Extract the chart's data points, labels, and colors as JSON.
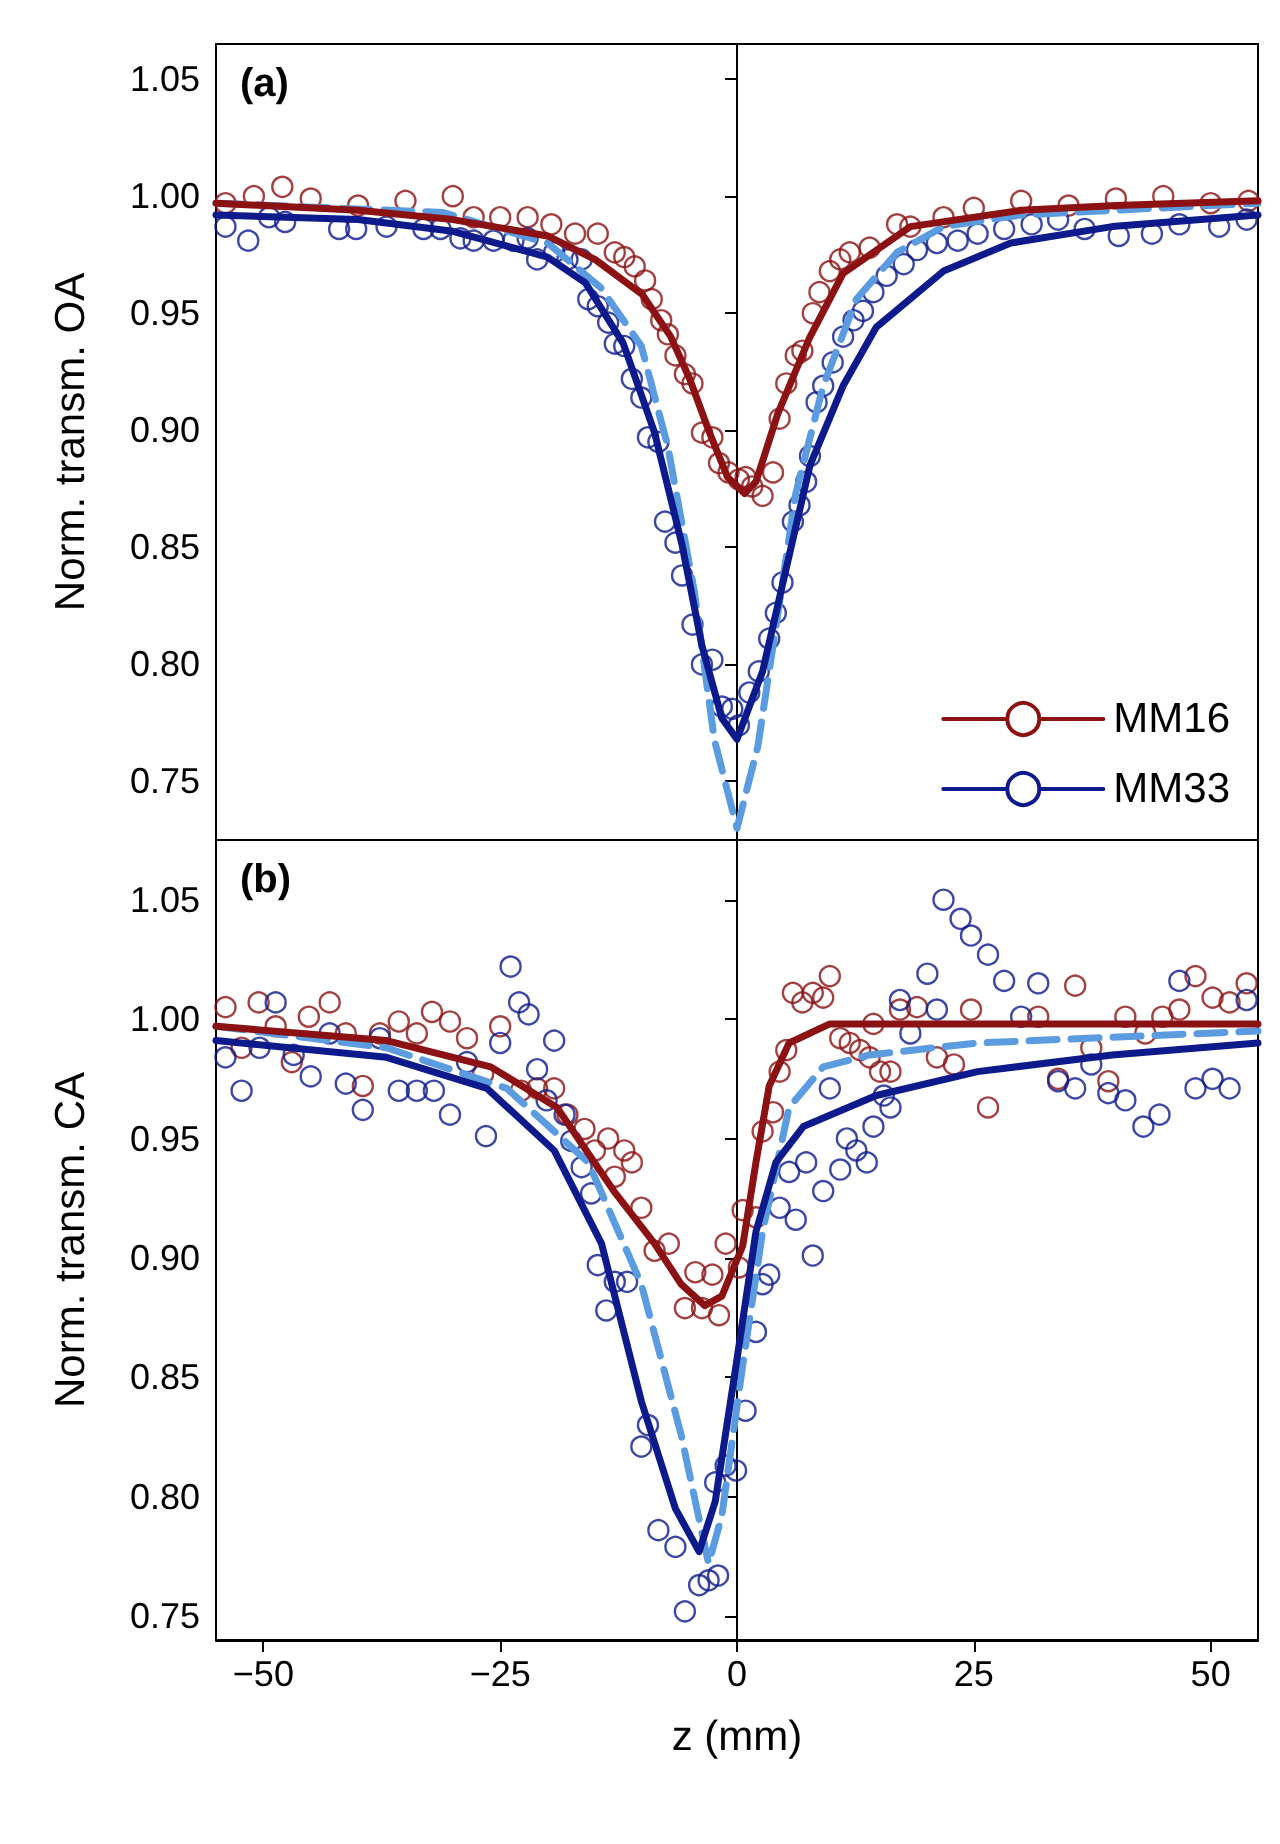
{
  "chart_data": [
    {
      "type": "scatter",
      "ylabel": "Norm. transm. OA",
      "annotations": [
        "(a)"
      ],
      "legend": "bottom right",
      "tick_labels": "y",
      "xlim": [
        -55,
        55
      ],
      "xticks": [
        -50,
        -25,
        0,
        25,
        50
      ],
      "ylim": [
        0.725,
        1.065
      ],
      "yticks": [
        {
          "value": 0.75,
          "label": "0.75"
        },
        {
          "value": 0.8,
          "label": "0.80"
        },
        {
          "value": 0.85,
          "label": "0.85"
        },
        {
          "value": 0.9,
          "label": "0.90"
        },
        {
          "value": 0.95,
          "label": "0.95"
        },
        {
          "value": 1.0,
          "label": "1.00"
        },
        {
          "value": 1.05,
          "label": "1.05"
        }
      ],
      "series": [
        {
          "marker": "circle",
          "color": "#8b1113",
          "x": [
            -54,
            -51,
            -48,
            -45,
            -40,
            -35,
            -30,
            -27.8,
            -25,
            -22.1,
            -19.6,
            -17.1,
            -14.7,
            -12.9,
            -11.9,
            -10.8,
            -9.7,
            -9,
            -8,
            -7.3,
            -6.5,
            -5.5,
            -4.7,
            -3.7,
            -2.6,
            -1.9,
            -0.9,
            0.2,
            0.9,
            1.6,
            2.7,
            3.8,
            4.5,
            5.2,
            6.2,
            6.9,
            8,
            8.7,
            9.8,
            10.9,
            11.9,
            14,
            16.9,
            18.3,
            21.8,
            25,
            30,
            35,
            40,
            45,
            50,
            54
          ],
          "values": [
            0.997,
            1.0,
            1.004,
            0.999,
            0.996,
            0.998,
            1.0,
            0.991,
            0.991,
            0.991,
            0.988,
            0.984,
            0.984,
            0.976,
            0.974,
            0.97,
            0.964,
            0.956,
            0.947,
            0.941,
            0.932,
            0.924,
            0.92,
            0.899,
            0.897,
            0.886,
            0.882,
            0.879,
            0.88,
            0.876,
            0.872,
            0.882,
            0.905,
            0.92,
            0.932,
            0.934,
            0.95,
            0.959,
            0.968,
            0.973,
            0.976,
            0.978,
            0.988,
            0.987,
            0.991,
            0.995,
            0.998,
            0.996,
            0.999,
            1.0,
            0.997,
            0.998
          ]
        },
        {
          "marker": "circle",
          "color": "#0c1a8c",
          "x": [
            -54,
            -51.6,
            -49.4,
            -47.7,
            -42,
            -40.2,
            -37,
            -33.1,
            -31.3,
            -29.2,
            -27.8,
            -25.7,
            -23.6,
            -22.1,
            -21.1,
            -19.3,
            -17.9,
            -16.4,
            -15.7,
            -14.7,
            -13.6,
            -12.9,
            -11.9,
            -11.1,
            -10.1,
            -9.4,
            -8.3,
            -7.6,
            -6.5,
            -5.8,
            -4.7,
            -3.7,
            -2.6,
            -1.6,
            -0.5,
            0.2,
            1.3,
            2.3,
            3.4,
            4.1,
            4.8,
            5.9,
            6.6,
            7.3,
            7.7,
            8.4,
            9.1,
            10.1,
            11.2,
            12.3,
            13.3,
            14.4,
            15.8,
            17.6,
            19,
            21.1,
            23.3,
            25.4,
            28.2,
            31.1,
            33.9,
            36.7,
            40.3,
            43.8,
            46.7,
            50.9,
            53.8
          ],
          "values": [
            0.987,
            0.981,
            0.991,
            0.989,
            0.986,
            0.986,
            0.987,
            0.986,
            0.986,
            0.982,
            0.981,
            0.981,
            0.981,
            0.982,
            0.973,
            0.976,
            0.973,
            0.973,
            0.956,
            0.953,
            0.946,
            0.937,
            0.936,
            0.922,
            0.914,
            0.897,
            0.895,
            0.861,
            0.852,
            0.838,
            0.817,
            0.8,
            0.802,
            0.782,
            0.781,
            0.774,
            0.788,
            0.797,
            0.811,
            0.822,
            0.835,
            0.861,
            0.868,
            0.878,
            0.889,
            0.912,
            0.919,
            0.929,
            0.94,
            0.947,
            0.951,
            0.959,
            0.966,
            0.971,
            0.977,
            0.98,
            0.981,
            0.984,
            0.986,
            0.988,
            0.99,
            0.986,
            0.983,
            0.984,
            0.988,
            0.987,
            0.99
          ]
        },
        {
          "type": "line",
          "color": "#5b9be0",
          "line_style": "dashed",
          "x": [
            -55,
            -31,
            -20,
            -14.4,
            -10.1,
            -7.3,
            -4.5,
            -2.4,
            0,
            2.2,
            4.1,
            6.2,
            9.1,
            12.6,
            16.9,
            21.8,
            30,
            55
          ],
          "values": [
            0.997,
            0.993,
            0.98,
            0.961,
            0.936,
            0.893,
            0.831,
            0.768,
            0.73,
            0.765,
            0.816,
            0.873,
            0.919,
            0.956,
            0.976,
            0.987,
            0.992,
            0.997
          ]
        },
        {
          "name": "MM16",
          "type": "line",
          "line_style": "solid",
          "color": "#8b1113",
          "x": [
            -55,
            -40,
            -30,
            -20,
            -15,
            -10,
            -7,
            -5,
            -3,
            -1,
            0.8,
            2,
            4.3,
            7.6,
            11.2,
            18.3,
            30,
            40,
            55
          ],
          "values": [
            0.997,
            0.994,
            0.99,
            0.983,
            0.973,
            0.958,
            0.94,
            0.922,
            0.9,
            0.88,
            0.873,
            0.878,
            0.907,
            0.939,
            0.967,
            0.987,
            0.994,
            0.996,
            0.998
          ]
        },
        {
          "name": "MM33",
          "type": "line",
          "line_style": "solid",
          "color": "#0c1a8c",
          "x": [
            -55,
            -40,
            -30,
            -20,
            -16,
            -12,
            -8.7,
            -5.8,
            -3.7,
            -1.6,
            0,
            2.7,
            4.8,
            7.7,
            11.2,
            14.7,
            21.8,
            28.9,
            39.6,
            55
          ],
          "values": [
            0.992,
            0.99,
            0.985,
            0.974,
            0.963,
            0.937,
            0.899,
            0.851,
            0.808,
            0.777,
            0.768,
            0.797,
            0.834,
            0.885,
            0.919,
            0.944,
            0.968,
            0.98,
            0.987,
            0.992
          ]
        }
      ]
    },
    {
      "type": "scatter",
      "ylabel": "Norm. transm. CA",
      "xlabel": "z (mm)",
      "annotations": [
        "(b)"
      ],
      "xlim": [
        -55,
        55
      ],
      "xticks": [
        {
          "value": -50,
          "label": "−50"
        },
        {
          "value": -25,
          "label": "−25"
        },
        0,
        25,
        50
      ],
      "ylim": [
        0.74,
        1.075
      ],
      "yticks": [
        {
          "value": 0.75,
          "label": "0.75"
        },
        {
          "value": 0.8,
          "label": "0.80"
        },
        {
          "value": 0.85,
          "label": "0.85"
        },
        {
          "value": 0.9,
          "label": "0.90"
        },
        {
          "value": 0.95,
          "label": "0.95"
        },
        {
          "value": 1.0,
          "label": "1.00"
        },
        {
          "value": 1.05,
          "label": "1.05"
        }
      ],
      "series": [
        {
          "marker": "circle",
          "color": "#8b1113",
          "x": [
            -54,
            -52.3,
            -50.5,
            -48.7,
            -47,
            -45.2,
            -43,
            -41.3,
            -39.5,
            -37.7,
            -35.7,
            -33.8,
            -32.2,
            -30.3,
            -28.5,
            -26.8,
            -25,
            -22.8,
            -21.1,
            -19.3,
            -17.9,
            -16.1,
            -15,
            -13.6,
            -12.9,
            -11.9,
            -11.1,
            -10.1,
            -8.7,
            -7.2,
            -5.5,
            -4.4,
            -3.7,
            -2.6,
            -1.9,
            -1.2,
            0.2,
            0.6,
            2,
            2.7,
            3.8,
            4.5,
            5.2,
            5.9,
            6.9,
            8,
            9.1,
            9.8,
            10.9,
            11.9,
            13,
            14,
            14.4,
            15.1,
            16.2,
            17.2,
            19,
            21.1,
            22.9,
            24.7,
            26.5,
            31.8,
            33.9,
            35.7,
            37.4,
            39.2,
            41,
            43.1,
            44.9,
            46.7,
            48.4,
            50.2,
            52,
            53.8
          ],
          "values": [
            1.005,
            0.988,
            1.007,
            0.997,
            0.982,
            1.001,
            1.007,
            0.994,
            0.972,
            0.994,
            0.999,
            0.994,
            1.003,
            0.999,
            0.992,
            0.977,
            0.997,
            0.97,
            0.971,
            0.971,
            0.96,
            0.954,
            0.945,
            0.95,
            0.934,
            0.945,
            0.94,
            0.921,
            0.903,
            0.906,
            0.879,
            0.894,
            0.879,
            0.893,
            0.876,
            0.906,
            0.896,
            0.92,
            0.917,
            0.953,
            0.961,
            0.978,
            0.987,
            1.011,
            1.007,
            1.011,
            1.009,
            1.018,
            0.992,
            0.99,
            0.987,
            0.984,
            0.998,
            0.978,
            0.978,
            1.004,
            1.005,
            0.984,
            0.981,
            1.004,
            0.963,
            1.001,
            0.975,
            1.014,
            0.988,
            0.974,
            1.001,
            0.994,
            1.001,
            1.004,
            1.018,
            1.009,
            1.007,
            1.015
          ]
        },
        {
          "marker": "circle",
          "color": "#0c1a8c",
          "x": [
            -54,
            -52.3,
            -50.4,
            -48.7,
            -46.8,
            -45,
            -43,
            -41.3,
            -39.5,
            -37.7,
            -35.7,
            -33.8,
            -32,
            -30.3,
            -28.5,
            -26.5,
            -25,
            -23.9,
            -23,
            -22,
            -21.1,
            -20.1,
            -19.3,
            -18.2,
            -17.5,
            -16.4,
            -15.4,
            -14.7,
            -13.8,
            -12.9,
            -11.6,
            -10.1,
            -9.4,
            -8.3,
            -6.5,
            -5.5,
            -4,
            -3,
            -2,
            -2.3,
            -1.2,
            -0.1,
            0.9,
            2,
            2.7,
            3.4,
            4.5,
            5.5,
            6.2,
            7.3,
            8,
            9.1,
            9.8,
            10.9,
            11.6,
            12.6,
            13.7,
            14.4,
            15.5,
            16.2,
            17.2,
            18.3,
            20.1,
            21.1,
            21.8,
            23.6,
            24.7,
            26.5,
            28.2,
            30,
            31.8,
            33.9,
            35.7,
            37.4,
            39.2,
            41,
            42.9,
            44.6,
            46.7,
            48.4,
            50.2,
            52,
            53.8
          ],
          "values": [
            0.984,
            0.97,
            0.988,
            1.007,
            0.985,
            0.976,
            0.994,
            0.973,
            0.962,
            0.992,
            0.97,
            0.97,
            0.97,
            0.96,
            0.982,
            0.951,
            0.99,
            1.022,
            1.007,
            1.002,
            0.979,
            0.966,
            0.991,
            0.96,
            0.949,
            0.938,
            0.927,
            0.897,
            0.878,
            0.89,
            0.89,
            0.821,
            0.83,
            0.786,
            0.779,
            0.752,
            0.763,
            0.765,
            0.767,
            0.806,
            0.813,
            0.811,
            0.836,
            0.869,
            0.889,
            0.893,
            0.921,
            0.936,
            0.916,
            0.94,
            0.901,
            0.928,
            0.971,
            0.937,
            0.95,
            0.945,
            0.94,
            0.955,
            0.968,
            0.963,
            1.008,
            0.994,
            1.019,
            1.004,
            1.05,
            1.042,
            1.035,
            1.027,
            1.016,
            1.001,
            1.015,
            0.974,
            0.971,
            0.981,
            0.969,
            0.966,
            0.955,
            0.96,
            1.016,
            0.971,
            0.975,
            0.971,
            1.008
          ]
        },
        {
          "type": "line",
          "color": "#5b9be0",
          "line_style": "dashed",
          "x": [
            -55,
            -37,
            -24.3,
            -15.7,
            -10.1,
            -5.9,
            -3,
            -1.6,
            0.6,
            2.7,
            5.5,
            9.1,
            14,
            25.4,
            55
          ],
          "values": [
            0.997,
            0.988,
            0.971,
            0.94,
            0.889,
            0.826,
            0.772,
            0.792,
            0.855,
            0.911,
            0.963,
            0.98,
            0.985,
            0.99,
            0.995
          ]
        },
        {
          "type": "line",
          "line_style": "solid",
          "color": "#8b1113",
          "x": [
            -55,
            -37,
            -26,
            -19,
            -13,
            -8.7,
            -5.9,
            -3.4,
            -1.6,
            0.6,
            2,
            3.4,
            5.5,
            9.8,
            20,
            55
          ],
          "values": [
            0.997,
            0.991,
            0.98,
            0.963,
            0.928,
            0.906,
            0.889,
            0.88,
            0.884,
            0.905,
            0.94,
            0.972,
            0.99,
            0.998,
            0.998,
            0.998
          ]
        },
        {
          "type": "line",
          "line_style": "solid",
          "color": "#0c1a8c",
          "x": [
            -55,
            -37,
            -26.4,
            -19.3,
            -14.3,
            -10.1,
            -6.5,
            -4,
            -2.3,
            -0.1,
            2,
            4.1,
            7,
            14.7,
            25.4,
            39.6,
            55
          ],
          "values": [
            0.991,
            0.984,
            0.971,
            0.945,
            0.906,
            0.84,
            0.795,
            0.777,
            0.798,
            0.855,
            0.911,
            0.94,
            0.955,
            0.968,
            0.978,
            0.985,
            0.99
          ]
        }
      ]
    }
  ]
}
